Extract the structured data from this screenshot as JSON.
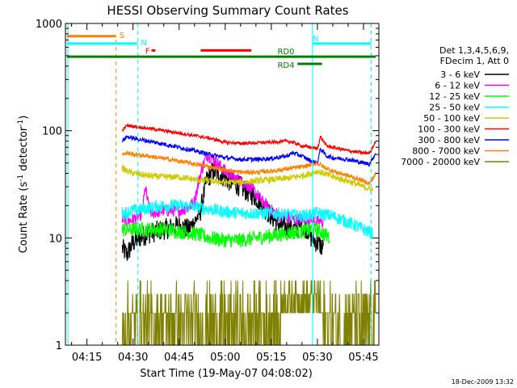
{
  "chart_data": {
    "type": "line",
    "title": "HESSI Observing Summary Count Rates",
    "xlabel": "Start Time (19-May-07 04:08:02)",
    "ylabel": "Count Rate (s",
    "ylabel_sup": "-1",
    "ylabel_tail": " detector",
    "ylabel_sup2": "-1",
    "ylabel_close": ")",
    "y_scale": "log",
    "ylim": [
      1,
      1000
    ],
    "xlim_minutes": [
      248,
      350
    ],
    "x_ticks": [
      {
        "t": 255,
        "label": "04:15"
      },
      {
        "t": 270,
        "label": "04:30"
      },
      {
        "t": 285,
        "label": "04:45"
      },
      {
        "t": 300,
        "label": "05:00"
      },
      {
        "t": 315,
        "label": "05:15"
      },
      {
        "t": 330,
        "label": "05:30"
      },
      {
        "t": 345,
        "label": "05:45"
      }
    ],
    "y_ticks": [
      {
        "v": 1,
        "label": "1"
      },
      {
        "v": 10,
        "label": "10"
      },
      {
        "v": 100,
        "label": "100"
      },
      {
        "v": 1000,
        "label": "1000"
      }
    ],
    "legend": {
      "placement": "right",
      "header": [
        "Det 1,3,4,5,6,9,",
        "FDecim 1, Att 0"
      ]
    },
    "footer_stamp": "18-Dec-2009 13:32",
    "series": [
      {
        "name": "3 - 6 keV",
        "color": "#000000",
        "start": 266.5,
        "end": 332,
        "pts": [
          [
            266.5,
            8
          ],
          [
            268,
            7
          ],
          [
            270,
            9
          ],
          [
            272,
            10
          ],
          [
            275,
            11
          ],
          [
            280,
            12
          ],
          [
            285,
            13
          ],
          [
            288,
            12
          ],
          [
            290,
            14
          ],
          [
            292,
            18
          ],
          [
            294,
            35
          ],
          [
            296,
            42
          ],
          [
            298,
            40
          ],
          [
            300,
            36
          ],
          [
            302,
            33
          ],
          [
            305,
            30
          ],
          [
            308,
            26
          ],
          [
            310,
            24
          ],
          [
            312,
            20
          ],
          [
            315,
            16
          ],
          [
            318,
            13
          ],
          [
            322,
            12
          ],
          [
            325,
            13
          ],
          [
            327,
            12
          ],
          [
            328,
            10
          ],
          [
            330,
            9
          ],
          [
            332,
            8
          ]
        ]
      },
      {
        "name": "6 - 12 keV",
        "color": "#ff00ff",
        "start": 266.5,
        "end": 332,
        "pts": [
          [
            266.5,
            15
          ],
          [
            268,
            14
          ],
          [
            270,
            15
          ],
          [
            272,
            16
          ],
          [
            273,
            17
          ],
          [
            274,
            30
          ],
          [
            275,
            20
          ],
          [
            276,
            17
          ],
          [
            280,
            18
          ],
          [
            285,
            18
          ],
          [
            288,
            19
          ],
          [
            290,
            22
          ],
          [
            292,
            40
          ],
          [
            294,
            60
          ],
          [
            296,
            55
          ],
          [
            298,
            48
          ],
          [
            300,
            42
          ],
          [
            302,
            38
          ],
          [
            305,
            34
          ],
          [
            308,
            30
          ],
          [
            310,
            26
          ],
          [
            312,
            22
          ],
          [
            315,
            18
          ],
          [
            318,
            16
          ],
          [
            322,
            15
          ],
          [
            325,
            15
          ],
          [
            328,
            15
          ],
          [
            330,
            14
          ],
          [
            332,
            14
          ]
        ]
      },
      {
        "name": "12 - 25 keV",
        "color": "#00ff00",
        "start": 266.5,
        "end": 334,
        "pts": [
          [
            266.5,
            12
          ],
          [
            270,
            12
          ],
          [
            275,
            12
          ],
          [
            280,
            12
          ],
          [
            285,
            11.5
          ],
          [
            290,
            11
          ],
          [
            295,
            10
          ],
          [
            300,
            9.5
          ],
          [
            305,
            9.5
          ],
          [
            310,
            10
          ],
          [
            315,
            10.5
          ],
          [
            320,
            11
          ],
          [
            325,
            11.5
          ],
          [
            328,
            12
          ],
          [
            330,
            12
          ],
          [
            332,
            11
          ],
          [
            334,
            10
          ]
        ]
      },
      {
        "name": "25 - 50 keV",
        "color": "#00ffff",
        "start": 266.5,
        "end": 348,
        "pts": [
          [
            266.5,
            17
          ],
          [
            270,
            18
          ],
          [
            275,
            19
          ],
          [
            280,
            20
          ],
          [
            285,
            20
          ],
          [
            290,
            19.5
          ],
          [
            295,
            18.5
          ],
          [
            300,
            17.5
          ],
          [
            305,
            17
          ],
          [
            310,
            17
          ],
          [
            315,
            17
          ],
          [
            320,
            16.5
          ],
          [
            325,
            16
          ],
          [
            330,
            17
          ],
          [
            335,
            16
          ],
          [
            340,
            14
          ],
          [
            345,
            12
          ],
          [
            348,
            11
          ]
        ]
      },
      {
        "name": "50 - 100 keV",
        "color": "#cccc00",
        "start": 266.5,
        "end": 348,
        "pts": [
          [
            266.5,
            45
          ],
          [
            268,
            42
          ],
          [
            270,
            40
          ],
          [
            275,
            38
          ],
          [
            280,
            37
          ],
          [
            285,
            37
          ],
          [
            290,
            35
          ],
          [
            295,
            34
          ],
          [
            300,
            33
          ],
          [
            305,
            33
          ],
          [
            310,
            34
          ],
          [
            315,
            35
          ],
          [
            320,
            36
          ],
          [
            325,
            38
          ],
          [
            328,
            40
          ],
          [
            330,
            42
          ],
          [
            332,
            40
          ],
          [
            335,
            37
          ],
          [
            340,
            34
          ],
          [
            345,
            30
          ],
          [
            348,
            28
          ]
        ]
      },
      {
        "name": "100 - 300 keV",
        "color": "#ff0000",
        "start": 266.5,
        "end": 349,
        "pts": [
          [
            266.5,
            100
          ],
          [
            268,
            112
          ],
          [
            270,
            110
          ],
          [
            275,
            105
          ],
          [
            280,
            100
          ],
          [
            285,
            95
          ],
          [
            290,
            90
          ],
          [
            295,
            85
          ],
          [
            300,
            78
          ],
          [
            305,
            76
          ],
          [
            310,
            77
          ],
          [
            315,
            78
          ],
          [
            320,
            80
          ],
          [
            322,
            78
          ],
          [
            325,
            72
          ],
          [
            328,
            70
          ],
          [
            330,
            68
          ],
          [
            331,
            88
          ],
          [
            333,
            72
          ],
          [
            335,
            70
          ],
          [
            340,
            65
          ],
          [
            345,
            62
          ],
          [
            347,
            62
          ],
          [
            349,
            80
          ]
        ]
      },
      {
        "name": "300 - 800 keV",
        "color": "#0000ff",
        "start": 266.5,
        "end": 349,
        "pts": [
          [
            266.5,
            80
          ],
          [
            268,
            88
          ],
          [
            270,
            85
          ],
          [
            275,
            80
          ],
          [
            280,
            75
          ],
          [
            285,
            70
          ],
          [
            290,
            65
          ],
          [
            295,
            60
          ],
          [
            300,
            56
          ],
          [
            305,
            54
          ],
          [
            310,
            54
          ],
          [
            315,
            55
          ],
          [
            320,
            58
          ],
          [
            322,
            62
          ],
          [
            325,
            58
          ],
          [
            328,
            52
          ],
          [
            330,
            50
          ],
          [
            331,
            68
          ],
          [
            333,
            58
          ],
          [
            335,
            56
          ],
          [
            340,
            54
          ],
          [
            345,
            50
          ],
          [
            347,
            49
          ],
          [
            349,
            62
          ]
        ]
      },
      {
        "name": "800 - 7000 keV",
        "color": "#ff8000",
        "start": 266.5,
        "end": 349,
        "pts": [
          [
            266.5,
            60
          ],
          [
            268,
            62
          ],
          [
            270,
            60
          ],
          [
            275,
            58
          ],
          [
            280,
            55
          ],
          [
            285,
            52
          ],
          [
            290,
            49
          ],
          [
            295,
            46
          ],
          [
            300,
            43
          ],
          [
            305,
            41
          ],
          [
            310,
            41
          ],
          [
            315,
            42
          ],
          [
            320,
            44
          ],
          [
            325,
            46
          ],
          [
            328,
            48
          ],
          [
            330,
            50
          ],
          [
            332,
            46
          ],
          [
            335,
            42
          ],
          [
            340,
            38
          ],
          [
            345,
            34
          ],
          [
            347,
            32
          ],
          [
            349,
            40
          ]
        ]
      },
      {
        "name": "7000 - 20000 keV",
        "color": "#808000",
        "start": 266.5,
        "end": 349,
        "pts": [
          [
            266.5,
            2
          ],
          [
            270,
            2
          ],
          [
            275,
            2
          ],
          [
            280,
            2.2
          ],
          [
            285,
            2.3
          ],
          [
            290,
            2.4
          ],
          [
            295,
            2.3
          ],
          [
            300,
            2.2
          ],
          [
            305,
            2.1
          ],
          [
            310,
            2.1
          ],
          [
            315,
            2.2
          ],
          [
            320,
            2.3
          ],
          [
            325,
            2.6
          ],
          [
            328,
            2.8
          ],
          [
            330,
            2.7
          ],
          [
            335,
            2.2
          ],
          [
            340,
            2
          ],
          [
            345,
            1.8
          ],
          [
            349,
            1.8
          ]
        ]
      }
    ],
    "annotations": {
      "vlines_cyan": [
        248.8,
        271.5,
        328.4,
        347.5
      ],
      "vlines_orange": [
        264.5
      ],
      "obs_bars": [
        {
          "label": "S",
          "color": "#ff8000",
          "t0": 248.5,
          "t1": 264.5,
          "y_val": 760,
          "label_side": "right"
        },
        {
          "label": "N",
          "color": "#00ffff",
          "t0": 248.5,
          "t1": 271.5,
          "y_val": 650,
          "label_side": "right"
        },
        {
          "label": "N",
          "color": "#00ffff",
          "t0": 328.4,
          "t1": 347.5,
          "y_val": 650,
          "label_side": "none"
        },
        {
          "label": "F",
          "color": "#ff0000",
          "t0": 276,
          "t1": 277.3,
          "y_val": 560,
          "label_side": "left"
        },
        {
          "label": "",
          "color": "#ff0000",
          "t0": 292,
          "t1": 308.5,
          "y_val": 560,
          "label_side": "none"
        },
        {
          "label": "RD0",
          "color": "#008000",
          "t0": 248.5,
          "t1": 349,
          "y_val": 490,
          "label_side": "above-mid",
          "label_t": 317
        },
        {
          "label": "RD4",
          "color": "#008000",
          "t0": 323.5,
          "t1": 331.5,
          "y_val": 420,
          "label_side": "left-text",
          "label_t": 317
        }
      ]
    }
  }
}
